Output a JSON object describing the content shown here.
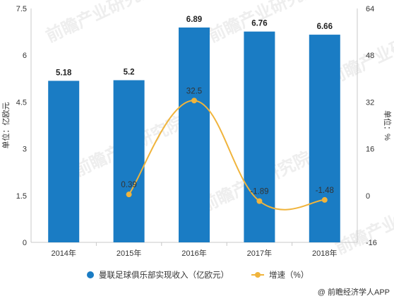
{
  "chart_data": {
    "type": "bar",
    "categories": [
      "2014年",
      "2015年",
      "2016年",
      "2017年",
      "2018年"
    ],
    "series": [
      {
        "name": "曼联足球俱乐部实现收入（亿欧元）",
        "type": "bar",
        "axis": "left",
        "values": [
          5.18,
          5.2,
          6.89,
          6.76,
          6.66
        ],
        "labels": [
          "5.18",
          "5.2",
          "6.89",
          "6.76",
          "6.66"
        ],
        "color": "#1a7cc4"
      },
      {
        "name": "增速（%）",
        "type": "line",
        "axis": "right",
        "values": [
          null,
          0.39,
          32.5,
          -1.89,
          -1.48
        ],
        "labels": [
          "",
          "0.39",
          "32.5",
          "-1.89",
          "-1.48"
        ],
        "color": "#f0b43c"
      }
    ],
    "ylabel": "单位：亿欧元",
    "y2label": "单位：%",
    "ylim": [
      0,
      7.5
    ],
    "y2lim": [
      -16,
      64
    ],
    "yticks": [
      "0",
      "1.5",
      "3",
      "4.5",
      "6",
      "7.5"
    ],
    "y2ticks": [
      "-16",
      "0",
      "16",
      "32",
      "48",
      "64"
    ],
    "grid": false,
    "legend_position": "bottom"
  },
  "credit": "@ 前瞻经济学人APP",
  "watermark": "前瞻产业研究院"
}
